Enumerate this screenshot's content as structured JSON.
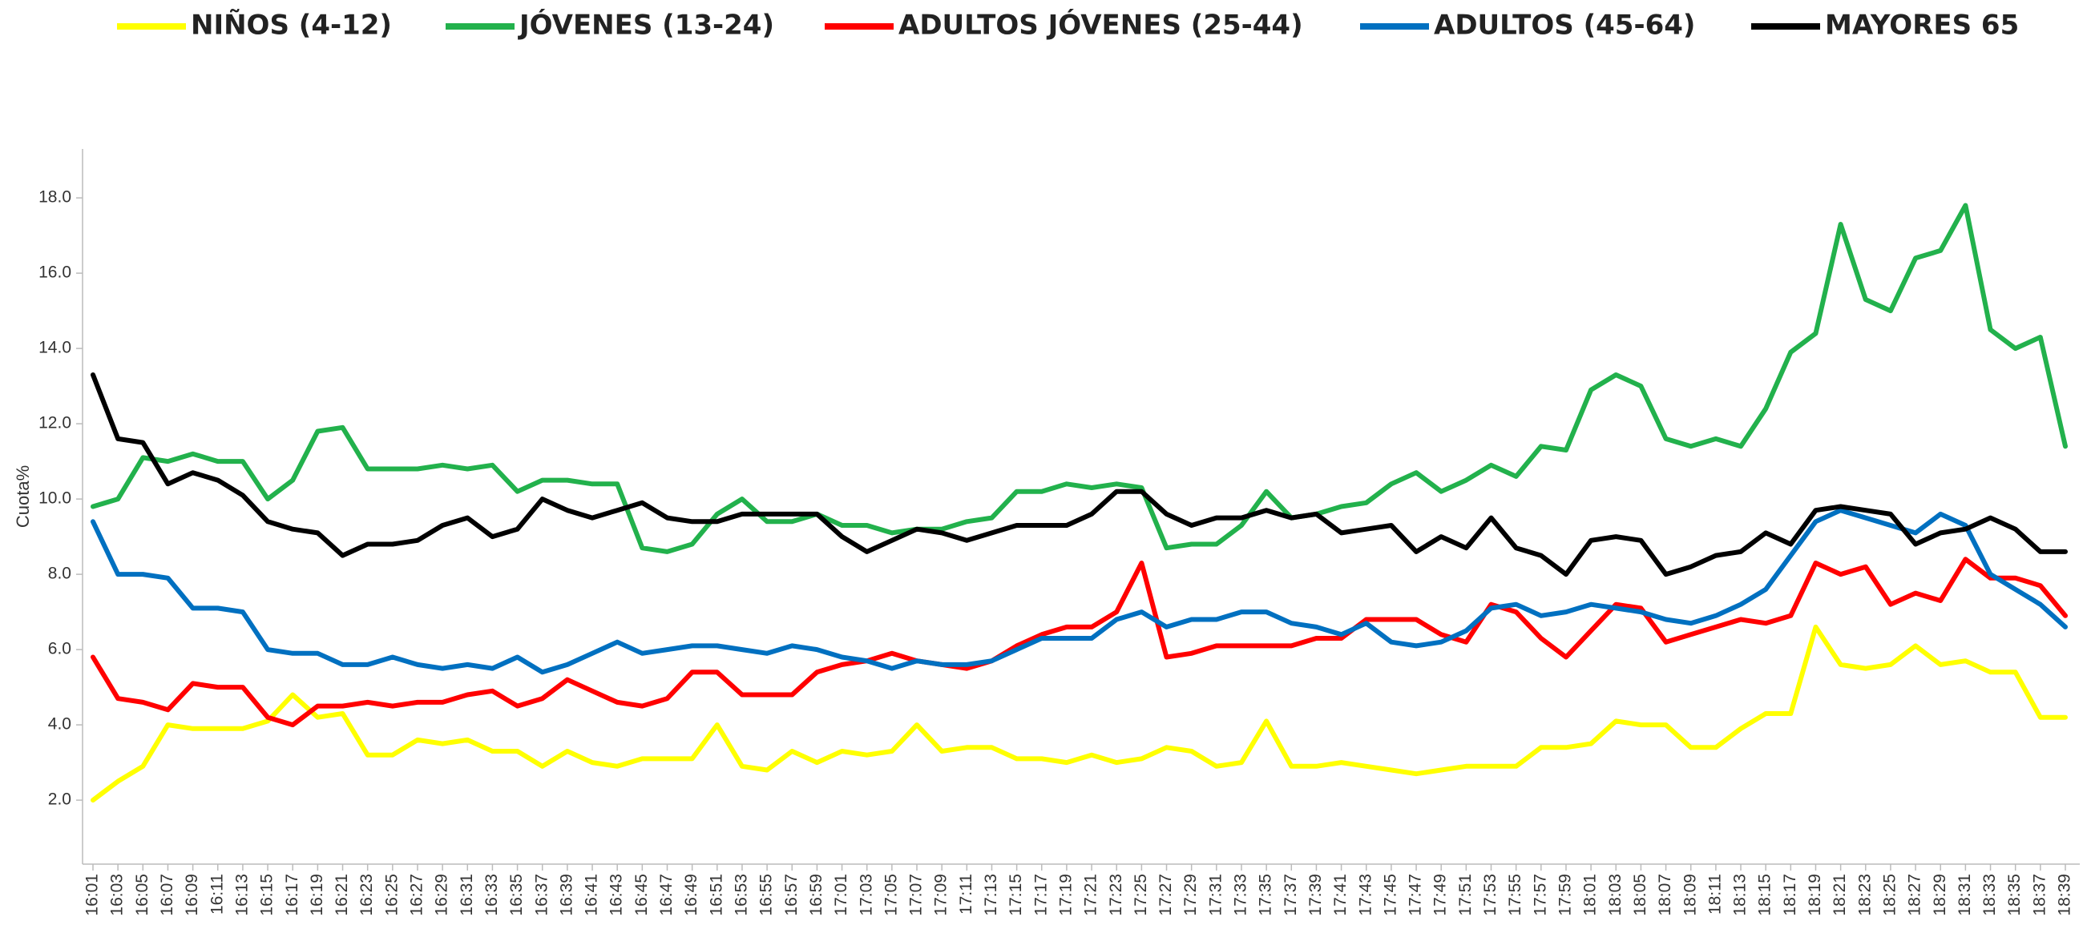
{
  "chart_data": {
    "type": "line",
    "y_label": "Cuota%",
    "legend": "top",
    "categories": [
      "16:01",
      "16:03",
      "16:05",
      "16:07",
      "16:09",
      "16:11",
      "16:13",
      "16:15",
      "16:17",
      "16:19",
      "16:21",
      "16:23",
      "16:25",
      "16:27",
      "16:29",
      "16:31",
      "16:33",
      "16:35",
      "16:37",
      "16:39",
      "16:41",
      "16:43",
      "16:45",
      "16:47",
      "16:49",
      "16:51",
      "16:53",
      "16:55",
      "16:57",
      "16:59",
      "17:01",
      "17:03",
      "17:05",
      "17:07",
      "17:09",
      "17:11",
      "17:13",
      "17:15",
      "17:17",
      "17:19",
      "17:21",
      "17:23",
      "17:25",
      "17:27",
      "17:29",
      "17:31",
      "17:33",
      "17:35",
      "17:37",
      "17:39",
      "17:41",
      "17:43",
      "17:45",
      "17:47",
      "17:49",
      "17:51",
      "17:53",
      "17:55",
      "17:57",
      "17:59",
      "18:01",
      "18:03",
      "18:05",
      "18:07",
      "18:09",
      "18:11",
      "18:13",
      "18:15",
      "18:17",
      "18:19",
      "18:21",
      "18:23",
      "18:25",
      "18:27",
      "18:29",
      "18:31",
      "18:33",
      "18:35",
      "18:37",
      "18:39"
    ],
    "series": [
      {
        "name": "NIÑOS (4-12)",
        "color": "#ffff00",
        "values": [
          2.0,
          2.5,
          2.9,
          4.0,
          3.9,
          3.9,
          3.9,
          4.1,
          4.8,
          4.2,
          4.3,
          3.2,
          3.2,
          3.6,
          3.5,
          3.6,
          3.3,
          3.3,
          2.9,
          3.3,
          3.0,
          2.9,
          3.1,
          3.1,
          3.1,
          4.0,
          2.9,
          2.8,
          3.3,
          3.0,
          3.3,
          3.2,
          3.3,
          4.0,
          3.3,
          3.4,
          3.4,
          3.1,
          3.1,
          3.0,
          3.2,
          3.0,
          3.1,
          3.4,
          3.3,
          2.9,
          3.0,
          4.1,
          2.9,
          2.9,
          3.0,
          2.9,
          2.8,
          2.7,
          2.8,
          2.9,
          2.9,
          2.9,
          3.4,
          3.4,
          3.5,
          4.1,
          4.0,
          4.0,
          3.4,
          3.4,
          3.9,
          4.3,
          4.3,
          6.6,
          5.6,
          5.5,
          5.6,
          6.1,
          5.6,
          5.7,
          5.4,
          5.4,
          4.2,
          4.2
        ]
      },
      {
        "name": "JÓVENES (13-24)",
        "color": "#22b14c",
        "values": [
          9.8,
          10.0,
          11.1,
          11.0,
          11.2,
          11.0,
          11.0,
          10.0,
          10.5,
          11.8,
          11.9,
          10.8,
          10.8,
          10.8,
          10.9,
          10.8,
          10.9,
          10.2,
          10.5,
          10.5,
          10.4,
          10.4,
          8.7,
          8.6,
          8.8,
          9.6,
          10.0,
          9.4,
          9.4,
          9.6,
          9.3,
          9.3,
          9.1,
          9.2,
          9.2,
          9.4,
          9.5,
          10.2,
          10.2,
          10.4,
          10.3,
          10.4,
          10.3,
          8.7,
          8.8,
          8.8,
          9.3,
          10.2,
          9.5,
          9.6,
          9.8,
          9.9,
          10.4,
          10.7,
          10.2,
          10.5,
          10.9,
          10.6,
          11.4,
          11.3,
          12.9,
          13.3,
          13.0,
          11.6,
          11.4,
          11.6,
          11.4,
          12.4,
          13.9,
          14.4,
          17.3,
          15.3,
          15.0,
          16.4,
          16.6,
          17.8,
          14.5,
          14.0,
          14.3,
          11.4
        ]
      },
      {
        "name": "ADULTOS JÓVENES (25-44)",
        "color": "#ff0000",
        "values": [
          5.8,
          4.7,
          4.6,
          4.4,
          5.1,
          5.0,
          5.0,
          4.2,
          4.0,
          4.5,
          4.5,
          4.6,
          4.5,
          4.6,
          4.6,
          4.8,
          4.9,
          4.5,
          4.7,
          5.2,
          4.9,
          4.6,
          4.5,
          4.7,
          5.4,
          5.4,
          4.8,
          4.8,
          4.8,
          5.4,
          5.6,
          5.7,
          5.9,
          5.7,
          5.6,
          5.5,
          5.7,
          6.1,
          6.4,
          6.6,
          6.6,
          7.0,
          8.3,
          5.8,
          5.9,
          6.1,
          6.1,
          6.1,
          6.1,
          6.3,
          6.3,
          6.8,
          6.8,
          6.8,
          6.4,
          6.2,
          7.2,
          7.0,
          6.3,
          5.8,
          6.5,
          7.2,
          7.1,
          6.2,
          6.4,
          6.6,
          6.8,
          6.7,
          6.9,
          8.3,
          8.0,
          8.2,
          7.2,
          7.5,
          7.3,
          8.4,
          7.9,
          7.9,
          7.7,
          6.9
        ]
      },
      {
        "name": "ADULTOS (45-64)",
        "color": "#0070c0",
        "values": [
          9.4,
          8.0,
          8.0,
          7.9,
          7.1,
          7.1,
          7.0,
          6.0,
          5.9,
          5.9,
          5.6,
          5.6,
          5.8,
          5.6,
          5.5,
          5.6,
          5.5,
          5.8,
          5.4,
          5.6,
          5.9,
          6.2,
          5.9,
          6.0,
          6.1,
          6.1,
          6.0,
          5.9,
          6.1,
          6.0,
          5.8,
          5.7,
          5.5,
          5.7,
          5.6,
          5.6,
          5.7,
          6.0,
          6.3,
          6.3,
          6.3,
          6.8,
          7.0,
          6.6,
          6.8,
          6.8,
          7.0,
          7.0,
          6.7,
          6.6,
          6.4,
          6.7,
          6.2,
          6.1,
          6.2,
          6.5,
          7.1,
          7.2,
          6.9,
          7.0,
          7.2,
          7.1,
          7.0,
          6.8,
          6.7,
          6.9,
          7.2,
          7.6,
          8.5,
          9.4,
          9.7,
          9.5,
          9.3,
          9.1,
          9.6,
          9.3,
          8.0,
          7.6,
          7.2,
          6.6
        ]
      },
      {
        "name": "MAYORES 65",
        "color": "#000000",
        "values": [
          13.3,
          11.6,
          11.5,
          10.4,
          10.7,
          10.5,
          10.1,
          9.4,
          9.2,
          9.1,
          8.5,
          8.8,
          8.8,
          8.9,
          9.3,
          9.5,
          9.0,
          9.2,
          10.0,
          9.7,
          9.5,
          9.7,
          9.9,
          9.5,
          9.4,
          9.4,
          9.6,
          9.6,
          9.6,
          9.6,
          9.0,
          8.6,
          8.9,
          9.2,
          9.1,
          8.9,
          9.1,
          9.3,
          9.3,
          9.3,
          9.6,
          10.2,
          10.2,
          9.6,
          9.3,
          9.5,
          9.5,
          9.7,
          9.5,
          9.6,
          9.1,
          9.2,
          9.3,
          8.6,
          9.0,
          8.7,
          9.5,
          8.7,
          8.5,
          8.0,
          8.9,
          9.0,
          8.9,
          8.0,
          8.2,
          8.5,
          8.6,
          9.1,
          8.8,
          9.7,
          9.8,
          9.7,
          9.6,
          8.8,
          9.1,
          9.2,
          9.5,
          9.2,
          8.6,
          8.6
        ]
      }
    ],
    "ylim": [
      0.3,
      19.3
    ],
    "yticks": [
      {
        "value": 2,
        "label": "2.0"
      },
      {
        "value": 4,
        "label": "4.0"
      },
      {
        "value": 6,
        "label": "6.0"
      },
      {
        "value": 8,
        "label": "8.0"
      },
      {
        "value": 10,
        "label": "10.0"
      },
      {
        "value": 12,
        "label": "12.0"
      },
      {
        "value": 14,
        "label": "14.0"
      },
      {
        "value": 16,
        "label": "16.0"
      },
      {
        "value": 18,
        "label": "18.0"
      }
    ],
    "grid": false
  }
}
